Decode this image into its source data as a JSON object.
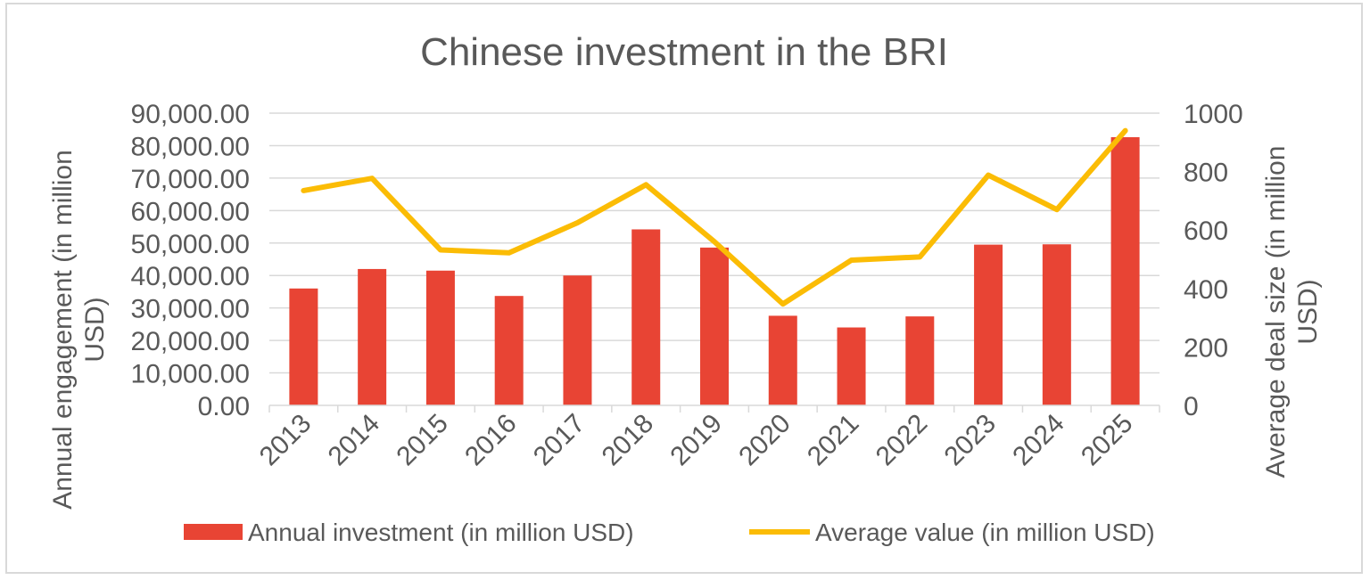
{
  "chart_data": {
    "type": "bar+line",
    "title": "Chinese investment in the BRI",
    "categories": [
      "2013",
      "2014",
      "2015",
      "2016",
      "2017",
      "2018",
      "2019",
      "2020",
      "2021",
      "2022",
      "2023",
      "2024",
      "2025"
    ],
    "series": [
      {
        "name": "Annual investment (in million USD)",
        "type": "bar",
        "axis": "left",
        "color": "#e84434",
        "values": [
          36000,
          42000,
          41500,
          33700,
          40000,
          54200,
          48600,
          27600,
          24000,
          27400,
          49500,
          49600,
          82600
        ]
      },
      {
        "name": "Average value (in million USD)",
        "type": "line",
        "axis": "right",
        "color": "#fbbc05",
        "values": [
          735,
          777,
          532,
          522,
          625,
          755,
          560,
          347,
          497,
          508,
          788,
          670,
          940
        ]
      }
    ],
    "ylabel_left": "Annual engagement (in million USD)",
    "ylabel_right": "Average deal size (in million USD)",
    "ylim_left": [
      0,
      90000
    ],
    "ylim_right": [
      0,
      1000
    ],
    "yticks_left": [
      "0.00",
      "10,000.00",
      "20,000.00",
      "30,000.00",
      "40,000.00",
      "50,000.00",
      "60,000.00",
      "70,000.00",
      "80,000.00",
      "90,000.00"
    ],
    "yticks_right": [
      "0",
      "200",
      "400",
      "600",
      "800",
      "1000"
    ],
    "grid": true,
    "legend_position": "bottom"
  }
}
